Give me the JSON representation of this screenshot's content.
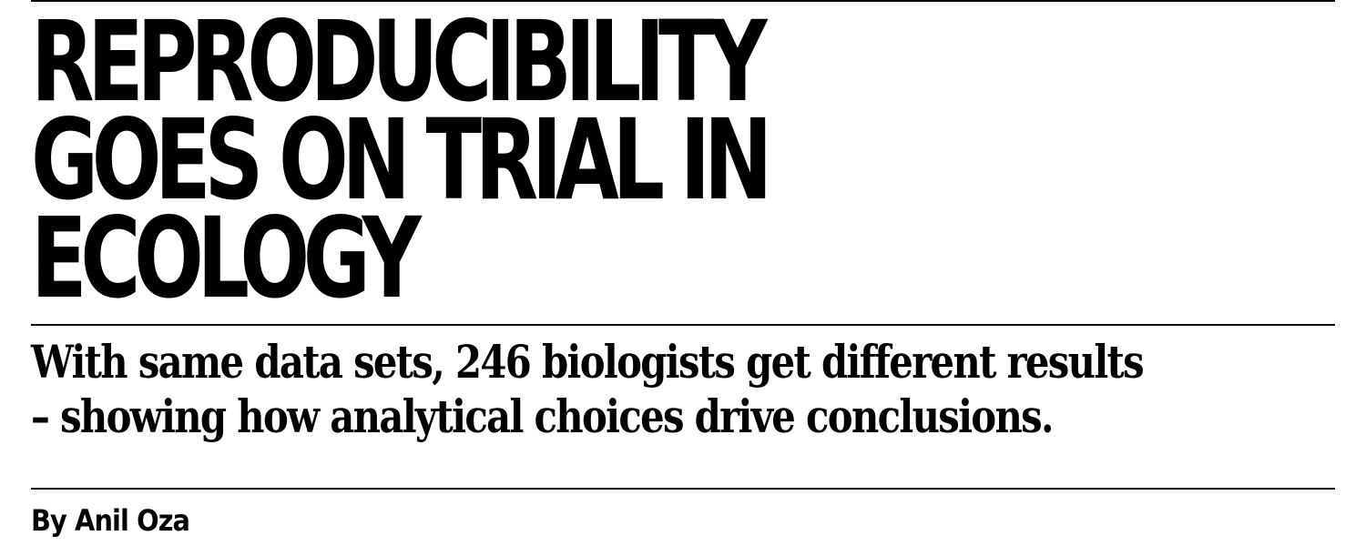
{
  "article": {
    "headline_lines": [
      "REPRODUCIBILITY",
      "GOES ON TRIAL IN",
      "ECOLOGY"
    ],
    "dek_lines": [
      "With same data sets, 246 biologists get different results",
      "– showing how analytical choices drive conclusions."
    ],
    "byline": "By Anil Oza"
  }
}
